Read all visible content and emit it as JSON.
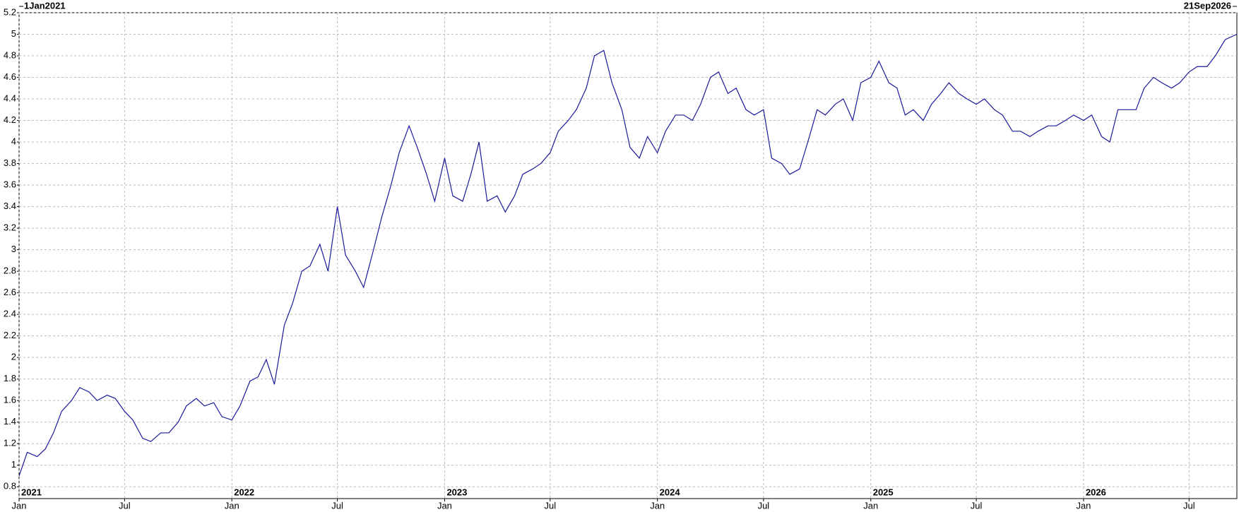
{
  "chart_data": {
    "type": "line",
    "start_label": "1Jan2021",
    "end_label": "21Sep2026",
    "color": "#1a1a99",
    "grid": true,
    "x": [
      "2021-01-01",
      "2021-01-15",
      "2021-02-01",
      "2021-02-15",
      "2021-03-01",
      "2021-03-15",
      "2021-04-01",
      "2021-04-15",
      "2021-05-01",
      "2021-05-15",
      "2021-06-01",
      "2021-06-15",
      "2021-07-01",
      "2021-07-15",
      "2021-08-01",
      "2021-08-15",
      "2021-09-01",
      "2021-09-15",
      "2021-10-01",
      "2021-10-15",
      "2021-11-01",
      "2021-11-15",
      "2021-12-01",
      "2021-12-15",
      "2022-01-01",
      "2022-01-15",
      "2022-02-01",
      "2022-02-15",
      "2022-03-01",
      "2022-03-15",
      "2022-04-01",
      "2022-04-15",
      "2022-05-01",
      "2022-05-15",
      "2022-06-01",
      "2022-06-15",
      "2022-07-01",
      "2022-07-15",
      "2022-08-01",
      "2022-08-15",
      "2022-09-01",
      "2022-09-15",
      "2022-10-01",
      "2022-10-15",
      "2022-11-01",
      "2022-11-15",
      "2022-12-01",
      "2022-12-15",
      "2023-01-01",
      "2023-01-15",
      "2023-02-01",
      "2023-02-15",
      "2023-03-01",
      "2023-03-15",
      "2023-04-01",
      "2023-04-15",
      "2023-05-01",
      "2023-05-15",
      "2023-06-01",
      "2023-06-15",
      "2023-07-01",
      "2023-07-15",
      "2023-08-01",
      "2023-08-15",
      "2023-09-01",
      "2023-09-15",
      "2023-10-01",
      "2023-10-15",
      "2023-11-01",
      "2023-11-15",
      "2023-12-01",
      "2023-12-15",
      "2024-01-01",
      "2024-01-15",
      "2024-02-01",
      "2024-02-15",
      "2024-03-01",
      "2024-03-15",
      "2024-04-01",
      "2024-04-15",
      "2024-05-01",
      "2024-05-15",
      "2024-06-01",
      "2024-06-15",
      "2024-07-01",
      "2024-07-15",
      "2024-08-01",
      "2024-08-15",
      "2024-09-01",
      "2024-09-15",
      "2024-10-01",
      "2024-10-15",
      "2024-11-01",
      "2024-11-15",
      "2024-12-01",
      "2024-12-15",
      "2025-01-01",
      "2025-01-15",
      "2025-02-01",
      "2025-02-15",
      "2025-03-01",
      "2025-03-15",
      "2025-04-01",
      "2025-04-15",
      "2025-05-01",
      "2025-05-15",
      "2025-06-01",
      "2025-06-15",
      "2025-07-01",
      "2025-07-15",
      "2025-08-01",
      "2025-08-15",
      "2025-09-01",
      "2025-09-15",
      "2025-10-01",
      "2025-10-15",
      "2025-11-01",
      "2025-11-15",
      "2025-12-01",
      "2025-12-15",
      "2026-01-01",
      "2026-01-15",
      "2026-02-01",
      "2026-02-15",
      "2026-03-01",
      "2026-03-15",
      "2026-04-01",
      "2026-04-15",
      "2026-05-01",
      "2026-05-15",
      "2026-06-01",
      "2026-06-15",
      "2026-07-01",
      "2026-07-15",
      "2026-08-01",
      "2026-08-15",
      "2026-09-01",
      "2026-09-21"
    ],
    "values": [
      0.9,
      1.12,
      1.08,
      1.15,
      1.3,
      1.5,
      1.6,
      1.72,
      1.68,
      1.6,
      1.65,
      1.62,
      1.5,
      1.42,
      1.25,
      1.22,
      1.3,
      1.3,
      1.4,
      1.55,
      1.62,
      1.55,
      1.58,
      1.45,
      1.42,
      1.55,
      1.78,
      1.82,
      1.98,
      1.75,
      2.3,
      2.5,
      2.8,
      2.85,
      3.05,
      2.8,
      3.4,
      2.95,
      2.8,
      2.65,
      3.0,
      3.3,
      3.6,
      3.9,
      4.15,
      3.95,
      3.7,
      3.45,
      3.85,
      3.5,
      3.45,
      3.7,
      4.0,
      3.45,
      3.5,
      3.35,
      3.5,
      3.7,
      3.75,
      3.8,
      3.9,
      4.1,
      4.2,
      4.3,
      4.5,
      4.8,
      4.85,
      4.55,
      4.3,
      3.95,
      3.85,
      4.05,
      3.9,
      4.1,
      4.25,
      4.25,
      4.2,
      4.35,
      4.6,
      4.65,
      4.45,
      4.5,
      4.3,
      4.25,
      4.3,
      3.85,
      3.8,
      3.7,
      3.75,
      4.0,
      4.3,
      4.25,
      4.35,
      4.4,
      4.2,
      4.55,
      4.6,
      4.75,
      4.55,
      4.5,
      4.25,
      4.3,
      4.2,
      4.35,
      4.45,
      4.55,
      4.45,
      4.4,
      4.35,
      4.4,
      4.3,
      4.25,
      4.1,
      4.1,
      4.05,
      4.1,
      4.15,
      4.15,
      4.2,
      4.25,
      4.2,
      4.25,
      4.05,
      4.0,
      4.3,
      4.3,
      4.3,
      4.5,
      4.6,
      4.55,
      4.5,
      4.55,
      4.65,
      4.7,
      4.7,
      4.8,
      4.95,
      5.0
    ],
    "xlim": [
      "2021-01-01",
      "2026-09-21"
    ],
    "xticks": [
      {
        "value": "2021-01-01",
        "label": "Jan"
      },
      {
        "value": "2021-07-01",
        "label": "Jul"
      },
      {
        "value": "2022-01-01",
        "label": "Jan"
      },
      {
        "value": "2022-07-01",
        "label": "Jul"
      },
      {
        "value": "2023-01-01",
        "label": "Jan"
      },
      {
        "value": "2023-07-01",
        "label": "Jul"
      },
      {
        "value": "2024-01-01",
        "label": "Jan"
      },
      {
        "value": "2024-07-01",
        "label": "Jul"
      },
      {
        "value": "2025-01-01",
        "label": "Jan"
      },
      {
        "value": "2025-07-01",
        "label": "Jul"
      },
      {
        "value": "2026-01-01",
        "label": "Jan"
      },
      {
        "value": "2026-07-01",
        "label": "Jul"
      }
    ],
    "year_labels": [
      {
        "value": "2021-01-01",
        "label": "2021"
      },
      {
        "value": "2022-01-01",
        "label": "2022"
      },
      {
        "value": "2023-01-01",
        "label": "2023"
      },
      {
        "value": "2024-01-01",
        "label": "2024"
      },
      {
        "value": "2025-01-01",
        "label": "2025"
      },
      {
        "value": "2026-01-01",
        "label": "2026"
      }
    ],
    "ylim": [
      0.69,
      5.2
    ],
    "yticks": [
      0.8,
      1,
      1.2,
      1.4,
      1.6,
      1.8,
      2,
      2.2,
      2.4,
      2.6,
      2.8,
      3,
      3.2,
      3.4,
      3.6,
      3.8,
      4,
      4.2,
      4.4,
      4.6,
      4.8,
      5,
      5.2
    ]
  }
}
